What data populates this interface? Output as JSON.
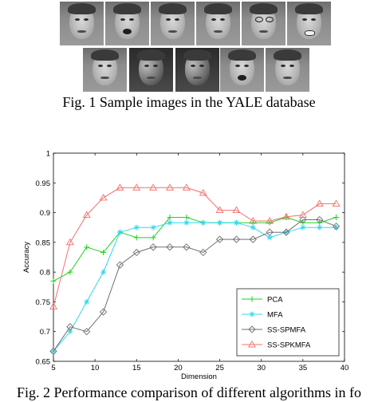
{
  "figure1": {
    "caption": "Fig. 1 Sample images in the YALE database"
  },
  "figure2": {
    "caption": "Fig. 2 Performance comparison of different algorithms in fo"
  },
  "chart_data": {
    "type": "line",
    "xlabel": "Dimension",
    "ylabel": "Accuracy",
    "xlim": [
      5,
      40
    ],
    "ylim": [
      0.65,
      1.0
    ],
    "xticks": [
      5,
      10,
      15,
      20,
      25,
      30,
      35,
      40
    ],
    "yticks": [
      0.65,
      0.7,
      0.75,
      0.8,
      0.85,
      0.9,
      0.95,
      1
    ],
    "ytick_labels": [
      "0.65",
      "0.7",
      "0.75",
      "0.8",
      "0.85",
      "0.9",
      "0.95",
      "1"
    ],
    "grid": false,
    "legend_position": "bottom-right",
    "x": [
      5,
      7,
      9,
      11,
      13,
      15,
      17,
      19,
      21,
      23,
      25,
      27,
      29,
      31,
      33,
      35,
      37,
      39
    ],
    "series": [
      {
        "name": "PCA",
        "color": "#1ed41e",
        "marker": "plus",
        "values": [
          0.785,
          0.8,
          0.842,
          0.833,
          0.867,
          0.858,
          0.858,
          0.892,
          0.892,
          0.883,
          0.883,
          0.883,
          0.883,
          0.883,
          0.892,
          0.883,
          0.883,
          0.892
        ]
      },
      {
        "name": "MFA",
        "color": "#2fd8f0",
        "marker": "asterisk",
        "values": [
          0.667,
          0.7,
          0.75,
          0.8,
          0.867,
          0.875,
          0.875,
          0.883,
          0.883,
          0.883,
          0.883,
          0.883,
          0.875,
          0.858,
          0.867,
          0.875,
          0.875,
          0.875
        ]
      },
      {
        "name": "SS-SPMFA",
        "color": "#707070",
        "marker": "diamond",
        "values": [
          0.667,
          0.708,
          0.7,
          0.733,
          0.812,
          0.833,
          0.842,
          0.842,
          0.842,
          0.833,
          0.855,
          0.855,
          0.855,
          0.867,
          0.867,
          0.888,
          0.888,
          0.877
        ]
      },
      {
        "name": "SS-SPKMFA",
        "color": "#f07070",
        "marker": "triangle",
        "values": [
          0.742,
          0.85,
          0.896,
          0.925,
          0.942,
          0.942,
          0.942,
          0.942,
          0.942,
          0.933,
          0.904,
          0.904,
          0.886,
          0.886,
          0.893,
          0.896,
          0.915,
          0.915
        ]
      }
    ]
  }
}
